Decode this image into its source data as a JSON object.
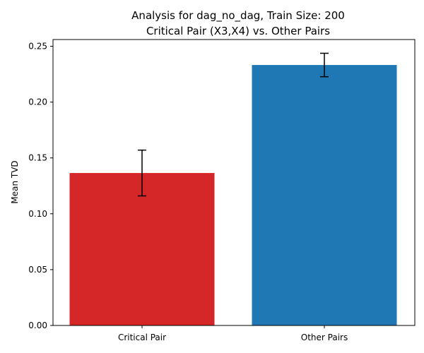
{
  "chart_data": {
    "type": "bar",
    "title": "Analysis for dag_no_dag, Train Size: 200",
    "subtitle": "Critical Pair (X3,X4) vs. Other Pairs",
    "xlabel": "",
    "ylabel": "Mean TVD",
    "ylim": [
      0,
      0.256
    ],
    "yticks": [
      "0.00",
      "0.05",
      "0.10",
      "0.15",
      "0.20",
      "0.25"
    ],
    "categories": [
      "Critical Pair",
      "Other Pairs"
    ],
    "values": [
      0.1365,
      0.2332
    ],
    "errors": [
      0.0205,
      0.0105
    ],
    "colors": [
      "#d62728",
      "#1f77b4"
    ],
    "grid": false,
    "legend": "none"
  }
}
